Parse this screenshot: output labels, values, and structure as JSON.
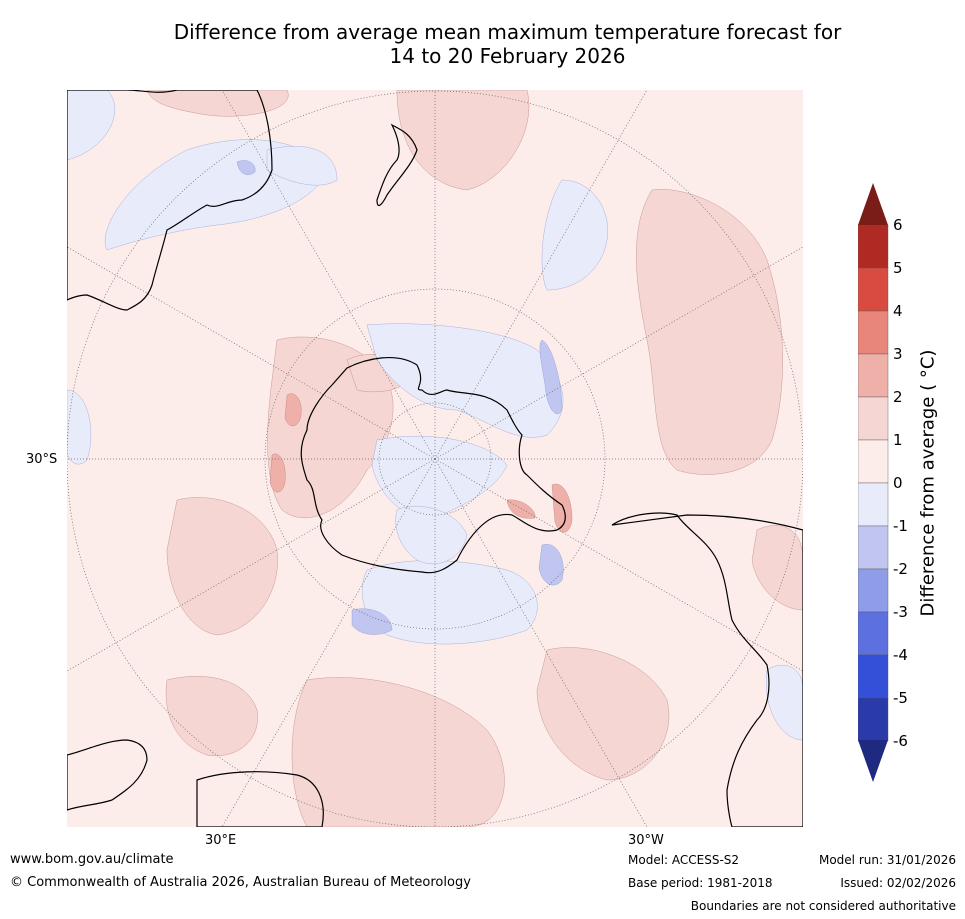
{
  "title_line1": "Difference from average mean maximum temperature forecast for",
  "title_line2": "14 to 20 February 2026",
  "map": {
    "projection": "south-polar stereographic",
    "lat_label": "30°S",
    "lon_labels": [
      "30°E",
      "30°W"
    ]
  },
  "colorbar": {
    "title": "Difference from average ( °C)",
    "ticks": [
      "6",
      "5",
      "4",
      "3",
      "2",
      "1",
      "0",
      "-1",
      "-2",
      "-3",
      "-4",
      "-5",
      "-6"
    ],
    "colors": {
      "gt6": "#7a1c18",
      "5to6": "#b02a24",
      "4to5": "#d94b40",
      "3to4": "#e8867c",
      "2to3": "#eeb0a8",
      "1to2": "#f5d6d3",
      "0to1": "#fcecea",
      "m1to0": "#e8ecfa",
      "m2tom1": "#c0c6f0",
      "m3tom2": "#8f9ce8",
      "m4tom3": "#5c70e0",
      "m5tom4": "#3450d8",
      "m6tom5": "#2a3aa8",
      "ltm6": "#1e2a80"
    }
  },
  "footer": {
    "url": "www.bom.gov.au/climate",
    "copyright": "© Commonwealth of Australia 2026, Australian Bureau of Meteorology",
    "model": "Model: ACCESS-S2",
    "base_period": "Base period: 1981-2018",
    "model_run": "Model run: 31/01/2026",
    "issued": "Issued: 02/02/2026",
    "disclaimer": "Boundaries are not considered authoritative"
  }
}
